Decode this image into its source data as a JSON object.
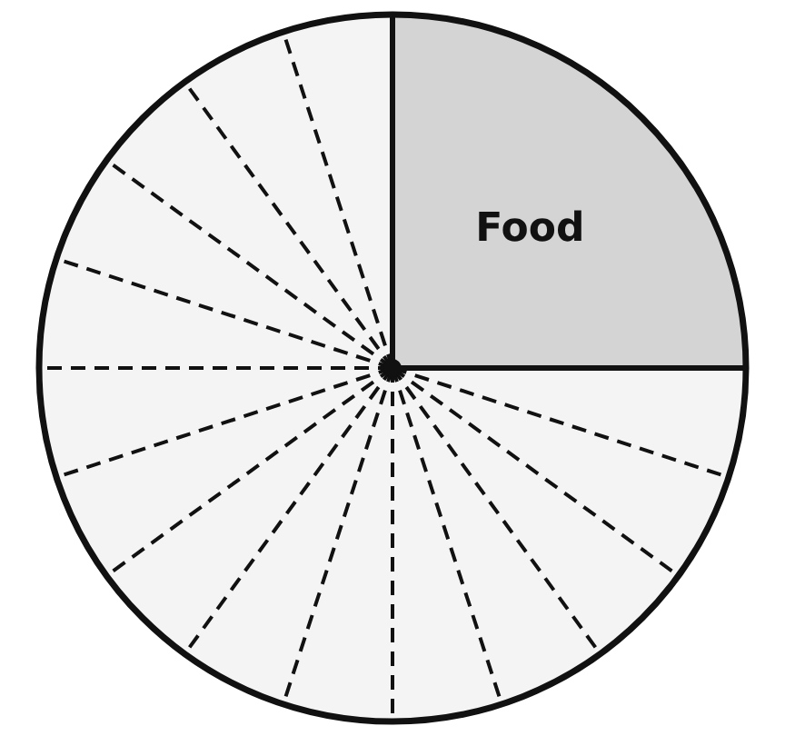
{
  "chart_data": {
    "type": "pie",
    "categories": [
      "Food",
      null,
      null,
      null,
      null,
      null,
      null,
      null,
      null,
      null,
      null,
      null,
      null,
      null,
      null,
      null
    ],
    "values": [
      25,
      5,
      5,
      5,
      5,
      5,
      5,
      5,
      5,
      5,
      5,
      5,
      5,
      5,
      5,
      5
    ],
    "colors": [
      "#d4d4d4",
      "#f4f4f4",
      "#f4f4f4",
      "#f4f4f4",
      "#f4f4f4",
      "#f4f4f4",
      "#f4f4f4",
      "#f4f4f4",
      "#f4f4f4",
      "#f4f4f4",
      "#f4f4f4",
      "#f4f4f4",
      "#f4f4f4",
      "#f4f4f4",
      "#f4f4f4",
      "#f4f4f4"
    ]
  }
}
